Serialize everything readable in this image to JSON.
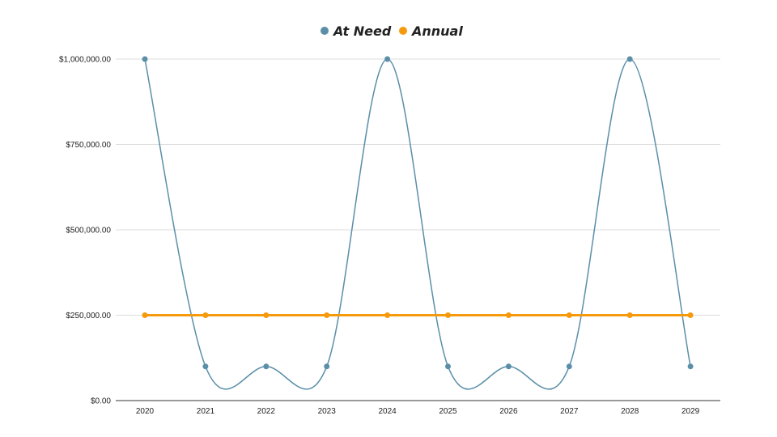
{
  "chart_data": {
    "type": "line",
    "title": "",
    "xlabel": "",
    "ylabel": "",
    "categories": [
      "2020",
      "2021",
      "2022",
      "2023",
      "2024",
      "2025",
      "2026",
      "2027",
      "2028",
      "2029"
    ],
    "series": [
      {
        "name": "At Need",
        "color": "#5b8fa8",
        "smooth": true,
        "values": [
          1000000,
          100000,
          100000,
          100000,
          1000000,
          100000,
          100000,
          100000,
          1000000,
          100000
        ]
      },
      {
        "name": "Annual",
        "color": "#f59a0c",
        "smooth": false,
        "values": [
          250000,
          250000,
          250000,
          250000,
          250000,
          250000,
          250000,
          250000,
          250000,
          250000
        ]
      }
    ],
    "ylim": [
      0,
      1000000
    ],
    "yticks": [
      0,
      250000,
      500000,
      750000,
      1000000
    ],
    "ytick_labels": [
      "$0.00",
      "$250,000.00",
      "$500,000.00",
      "$750,000.00",
      "$1,000,000.00"
    ],
    "grid": true,
    "legend": {
      "position": "top-center",
      "labels": [
        "At Need",
        "Annual"
      ]
    }
  }
}
